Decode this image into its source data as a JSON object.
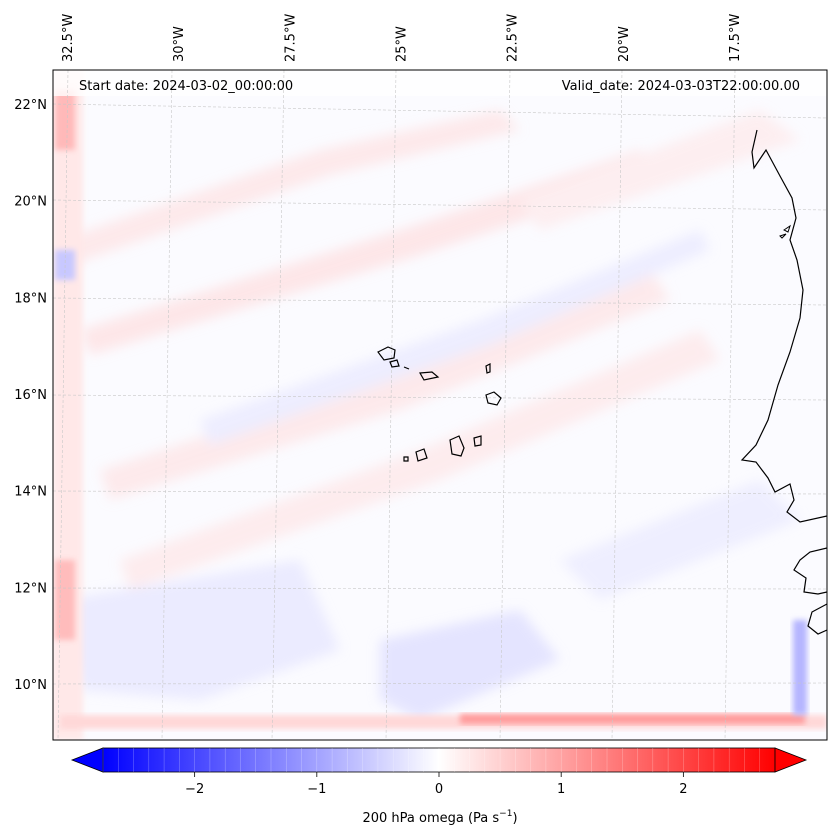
{
  "map": {
    "header_left": "Start date: 2024-03-02_00:00:00",
    "header_right": "Valid_date: 2024-03-03T22:00:00.00",
    "lon_labels": [
      {
        "text": "32.5°W",
        "lon": -32.5
      },
      {
        "text": "30°W",
        "lon": -30
      },
      {
        "text": "27.5°W",
        "lon": -27.5
      },
      {
        "text": "25°W",
        "lon": -25
      },
      {
        "text": "22.5°W",
        "lon": -22.5
      },
      {
        "text": "20°W",
        "lon": -20
      },
      {
        "text": "17.5°W",
        "lon": -17.5
      }
    ],
    "lat_labels": [
      {
        "text": "22°N",
        "lat": 22
      },
      {
        "text": "20°N",
        "lat": 20
      },
      {
        "text": "18°N",
        "lat": 18
      },
      {
        "text": "16°N",
        "lat": 16
      },
      {
        "text": "14°N",
        "lat": 14
      },
      {
        "text": "12°N",
        "lat": 12
      },
      {
        "text": "10°N",
        "lat": 10
      }
    ],
    "gridlines": true,
    "field": "200 hPa omega",
    "colormap": "bwr"
  },
  "colorbar": {
    "label_main": "200 hPa omega (Pa s",
    "label_sup": "−1",
    "label_end": ")",
    "vmin": -2.75,
    "vmax": 2.75,
    "extend": "both",
    "ticks": [
      {
        "text": "−2",
        "value": -2
      },
      {
        "text": "−1",
        "value": -1
      },
      {
        "text": "0",
        "value": 0
      },
      {
        "text": "1",
        "value": 1
      },
      {
        "text": "2",
        "value": 2
      }
    ],
    "colors": {
      "low": "#0000ff",
      "mid": "#ffffff",
      "high": "#ff0000"
    }
  }
}
